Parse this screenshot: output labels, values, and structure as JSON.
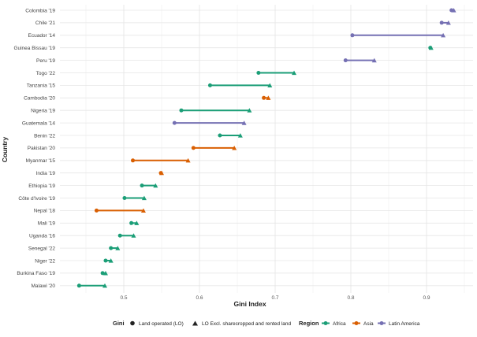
{
  "chart_data": {
    "type": "dumbbell",
    "title": "",
    "xlabel": "Gini Index",
    "ylabel": "Country",
    "xlim": [
      0.44,
      0.96
    ],
    "x_ticks": [
      "0.5",
      "0.6",
      "0.7",
      "0.8",
      "0.9"
    ],
    "x_tick_values": [
      0.5,
      0.6,
      0.7,
      0.8,
      0.9
    ],
    "grid": true,
    "legend_position": "bottom",
    "legend": {
      "gini_title": "Gini",
      "gini_items": [
        {
          "label": "Land operated (LO)",
          "shape": "circle"
        },
        {
          "label": "LO Excl. sharecropped and rented land",
          "shape": "triangle"
        }
      ],
      "region_title": "Region",
      "region_items": [
        {
          "label": "Africa",
          "color": "#1b9e77"
        },
        {
          "label": "Asia",
          "color": "#d95f02"
        },
        {
          "label": "Latin America",
          "color": "#7570b3"
        }
      ]
    },
    "countries": [
      {
        "label": "Colombia '19",
        "region": "Latin America",
        "lo": 0.933,
        "lo_excl": 0.936
      },
      {
        "label": "Chile '21",
        "region": "Latin America",
        "lo": 0.92,
        "lo_excl": 0.929
      },
      {
        "label": "Ecuador '14",
        "region": "Latin America",
        "lo": 0.802,
        "lo_excl": 0.922
      },
      {
        "label": "Guinea Bissau '19",
        "region": "Africa",
        "lo": 0.905,
        "lo_excl": 0.906
      },
      {
        "label": "Peru '19",
        "region": "Latin America",
        "lo": 0.793,
        "lo_excl": 0.831
      },
      {
        "label": "Togo '22",
        "region": "Africa",
        "lo": 0.678,
        "lo_excl": 0.725
      },
      {
        "label": "Tanzania '15",
        "region": "Africa",
        "lo": 0.614,
        "lo_excl": 0.693
      },
      {
        "label": "Cambodia '20",
        "region": "Asia",
        "lo": 0.685,
        "lo_excl": 0.691
      },
      {
        "label": "Nigeria '19",
        "region": "Africa",
        "lo": 0.576,
        "lo_excl": 0.666
      },
      {
        "label": "Guatemala '14",
        "region": "Latin America",
        "lo": 0.567,
        "lo_excl": 0.659
      },
      {
        "label": "Benin '22",
        "region": "Africa",
        "lo": 0.627,
        "lo_excl": 0.654
      },
      {
        "label": "Pakistan '20",
        "region": "Asia",
        "lo": 0.592,
        "lo_excl": 0.646
      },
      {
        "label": "Myanmar '15",
        "region": "Asia",
        "lo": 0.512,
        "lo_excl": 0.585
      },
      {
        "label": "India '19",
        "region": "Asia",
        "lo": 0.549,
        "lo_excl": 0.55
      },
      {
        "label": "Ethiopia '19",
        "region": "Africa",
        "lo": 0.524,
        "lo_excl": 0.542
      },
      {
        "label": "Côte d'Ivoire '19",
        "region": "Africa",
        "lo": 0.501,
        "lo_excl": 0.527
      },
      {
        "label": "Nepal '18",
        "region": "Asia",
        "lo": 0.464,
        "lo_excl": 0.526
      },
      {
        "label": "Mali '19",
        "region": "Africa",
        "lo": 0.51,
        "lo_excl": 0.517
      },
      {
        "label": "Uganda '16",
        "region": "Africa",
        "lo": 0.495,
        "lo_excl": 0.513
      },
      {
        "label": "Senegal '22",
        "region": "Africa",
        "lo": 0.483,
        "lo_excl": 0.492
      },
      {
        "label": "Niger '22",
        "region": "Africa",
        "lo": 0.476,
        "lo_excl": 0.483
      },
      {
        "label": "Burkina Faso '19",
        "region": "Africa",
        "lo": 0.472,
        "lo_excl": 0.476
      },
      {
        "label": "Malawi '20",
        "region": "Africa",
        "lo": 0.441,
        "lo_excl": 0.475
      }
    ]
  }
}
